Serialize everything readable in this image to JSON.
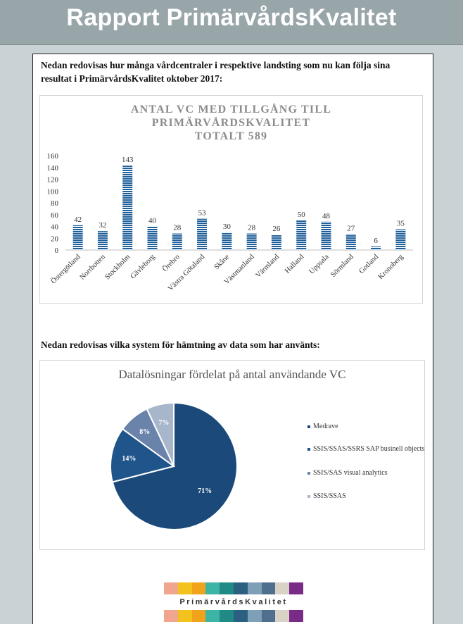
{
  "header": {
    "title": "Rapport PrimärvårdsKvalitet"
  },
  "sections": {
    "intro1": "Nedan redovisas hur många vårdcentraler i respektive landsting som nu kan följa sina resultat i PrimärvårdsKvalitet oktober 2017:",
    "intro2": "Nedan redovisas vilka system för hämtning av data som har använts:"
  },
  "chart_data": [
    {
      "type": "bar",
      "title_lines": [
        "ANTAL VC MED TILLGÅNG TILL",
        "PRIMÄRVÅRDSKVALITET",
        "TOTALT 589"
      ],
      "categories": [
        "Östergötland",
        "Norrbotten",
        "Stockholm",
        "Gävleborg",
        "Örebro",
        "Västra Götaland",
        "Skåne",
        "Västmanland",
        "Värmland",
        "Halland",
        "Uppsala",
        "Sörmland",
        "Gotland",
        "Kronoberg"
      ],
      "values": [
        42,
        32,
        143,
        40,
        28,
        53,
        30,
        28,
        26,
        50,
        48,
        27,
        6,
        35
      ],
      "yticks": [
        0,
        20,
        40,
        60,
        80,
        100,
        120,
        140,
        160
      ],
      "ylim": [
        0,
        160
      ],
      "color": "#1f5f9a",
      "grid": false
    },
    {
      "type": "pie",
      "title": "Datalösningar fördelat på antal användande VC",
      "slices": [
        {
          "label": "Medrave",
          "value": 71,
          "display": "71%",
          "color": "#1b4a7a"
        },
        {
          "label": "SSIS/SSAS/SSRS SAP businell objects",
          "value": 14,
          "display": "14%",
          "color": "#20558b"
        },
        {
          "label": "SSIS/SAS visual analytics",
          "value": 8,
          "display": "8%",
          "color": "#6a83ab"
        },
        {
          "label": "SSIS/SSAS",
          "value": 7,
          "display": "7%",
          "color": "#a8b6cc"
        }
      ],
      "legend_position": "right"
    }
  ],
  "footer": {
    "logo_text": "PrimärvårdsKvalitet",
    "logo_colors": [
      "#f0a58f",
      "#f4c21e",
      "#f2a31c",
      "#3db5a6",
      "#1f8a86",
      "#2b6080",
      "#7f9fb6",
      "#4f6f8f",
      "#d9d2c6",
      "#7a2a87"
    ]
  }
}
